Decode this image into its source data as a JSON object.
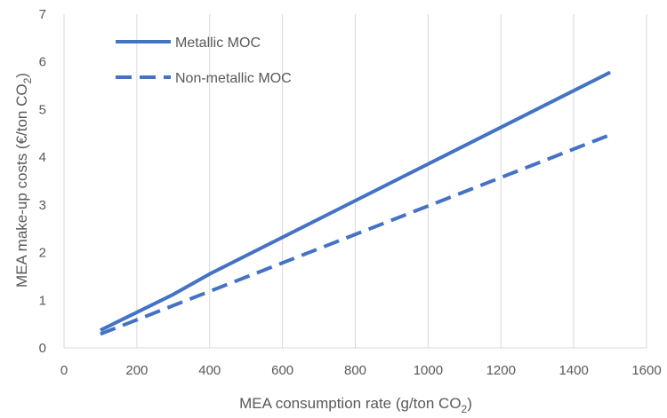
{
  "chart_data": {
    "type": "line",
    "xlabel": "MEA consumption rate (g/ton CO",
    "xlabel_sub": "2",
    "xlabel_end": ")",
    "ylabel": "MEA make-up costs (€/ton CO",
    "ylabel_sub": "2",
    "ylabel_end": ")",
    "xlim": [
      0,
      1600
    ],
    "ylim": [
      0,
      7
    ],
    "xticks": [
      0,
      200,
      400,
      600,
      800,
      1000,
      1200,
      1400,
      1600
    ],
    "yticks": [
      0,
      1,
      2,
      3,
      4,
      5,
      6,
      7
    ],
    "grid": "vertical",
    "legend_position": "top-left",
    "series": [
      {
        "name": "Metallic MOC",
        "style": "solid",
        "color": "#4472C4",
        "x": [
          100,
          300,
          400,
          1500
        ],
        "y": [
          0.37,
          1.12,
          1.55,
          5.78
        ]
      },
      {
        "name": "Non-metallic MOC",
        "style": "dashed",
        "color": "#4472C4",
        "x": [
          100,
          1500
        ],
        "y": [
          0.29,
          4.47
        ]
      }
    ]
  }
}
